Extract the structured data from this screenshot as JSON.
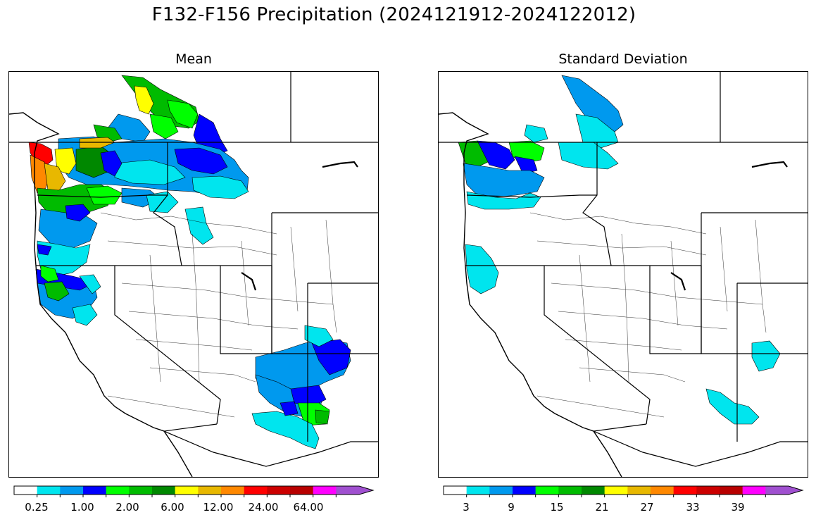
{
  "figure": {
    "title": "F132-F156 Precipitation (2024121912-2024122012)"
  },
  "panels": [
    {
      "title": "Mean",
      "colorbar": {
        "colors": [
          "#ffffff",
          "#00e5ee",
          "#0099ee",
          "#0000ff",
          "#00ff00",
          "#00bb00",
          "#008800",
          "#ffff00",
          "#e8b800",
          "#ff8800",
          "#ff0000",
          "#cc0000",
          "#b80000",
          "#ff00ff",
          "#a050d0"
        ],
        "tick_labels": [
          "0.25",
          "1.00",
          "2.00",
          "6.00",
          "12.00",
          "24.00",
          "64.00"
        ],
        "extend": "max"
      }
    },
    {
      "title": "Standard Deviation",
      "colorbar": {
        "colors": [
          "#ffffff",
          "#00e5ee",
          "#0099ee",
          "#0000ff",
          "#00ff00",
          "#00bb00",
          "#008800",
          "#ffff00",
          "#e8b800",
          "#ff8800",
          "#ff0000",
          "#cc0000",
          "#b80000",
          "#ff00ff",
          "#a050d0"
        ],
        "tick_labels": [
          "3",
          "9",
          "15",
          "21",
          "27",
          "33",
          "39"
        ],
        "extend": "max"
      }
    }
  ]
}
